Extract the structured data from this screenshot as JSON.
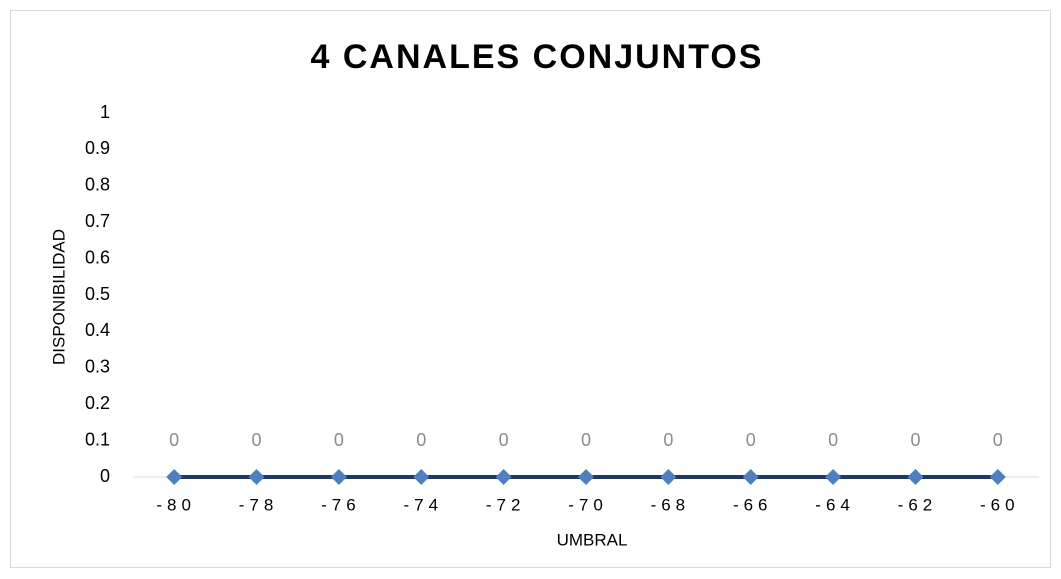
{
  "chart_data": {
    "type": "line",
    "title": "4 CANALES CONJUNTOS",
    "x_label": "UMBRAL",
    "y_label": "DISPONIBILIDAD",
    "categories": [
      "-80",
      "-78",
      "-76",
      "-74",
      "-72",
      "-70",
      "-68",
      "-66",
      "-64",
      "-62",
      "-60"
    ],
    "series": [
      {
        "color": "#1f3864",
        "marker_color": "#4f7fbf",
        "values": [
          0,
          0,
          0,
          0,
          0,
          0,
          0,
          0,
          0,
          0,
          0
        ]
      }
    ],
    "ylim": [
      0,
      1
    ],
    "yticks": [
      0,
      0.1,
      0.2,
      0.3,
      0.4,
      0.5,
      0.6,
      0.7,
      0.8,
      0.9,
      1
    ],
    "grid": false,
    "data_labels": true
  }
}
